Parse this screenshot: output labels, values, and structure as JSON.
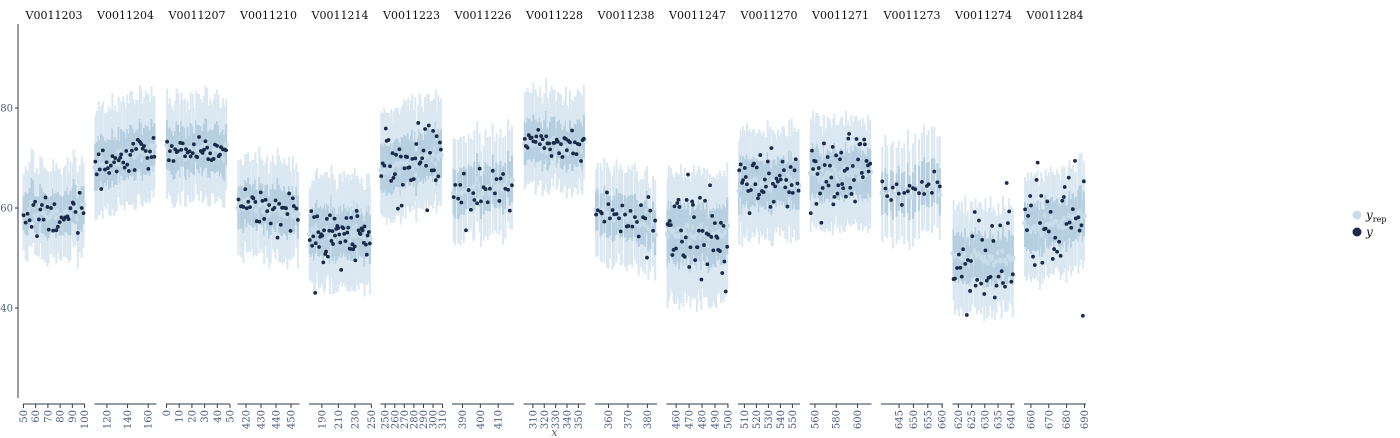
{
  "chart_data": {
    "type": "scatter",
    "title": "",
    "xlabel": "x",
    "ylabel": "",
    "ylim": [
      22,
      96
    ],
    "yticks": [
      40,
      60,
      80
    ],
    "legend": {
      "placement": "right",
      "entries": [
        {
          "name": "y",
          "sub": "rep",
          "color": "#c9dcea"
        },
        {
          "name": "y",
          "sub": "",
          "color": "#1a2b49"
        }
      ]
    },
    "colors": {
      "yrep_outer": "#dbe8f2",
      "yrep_inner": "#b5cfe1",
      "y_point": "#1a2b49",
      "yrep_point": "#c9dcea"
    },
    "panels": [
      {
        "name": "V0011203",
        "xmin": 48,
        "xmax": 102,
        "ticks": [
          50,
          60,
          70,
          80,
          90,
          100
        ],
        "n": 34,
        "center": 59,
        "spread": 2.2,
        "slope": 0.5,
        "band_lo": 7,
        "band_hi": 8
      },
      {
        "name": "V0011204",
        "xmin": 106,
        "xmax": 170,
        "ticks": [
          120,
          140,
          160
        ],
        "n": 40,
        "center": 70,
        "spread": 1.8,
        "slope": 3.5,
        "band_lo": 8,
        "band_hi": 10
      },
      {
        "name": "V0011207",
        "xmin": -2,
        "xmax": 50,
        "ticks": [
          0,
          10,
          20,
          30,
          40,
          50
        ],
        "n": 38,
        "center": 71.5,
        "spread": 1.5,
        "slope": 0,
        "band_lo": 8,
        "band_hi": 9
      },
      {
        "name": "V0011210",
        "xmin": 413,
        "xmax": 457,
        "ticks": [
          420,
          430,
          440,
          450
        ],
        "n": 36,
        "center": 60,
        "spread": 1.6,
        "slope": -2.5,
        "band_lo": 8,
        "band_hi": 8
      },
      {
        "name": "V0011214",
        "xmin": 172,
        "xmax": 252,
        "ticks": [
          190,
          210,
          230,
          250
        ],
        "n": 60,
        "center": 55,
        "spread": 2.8,
        "slope": 0,
        "band_lo": 9,
        "band_hi": 9
      },
      {
        "name": "V0011223",
        "xmin": 243,
        "xmax": 312,
        "ticks": [
          250,
          260,
          270,
          280,
          290,
          300,
          310
        ],
        "n": 45,
        "center": 69,
        "spread": 4.2,
        "slope": 4,
        "band_lo": 8,
        "band_hi": 10
      },
      {
        "name": "V0011226",
        "xmin": 383,
        "xmax": 420,
        "ticks": [
          390,
          400,
          410
        ],
        "n": 28,
        "center": 64,
        "spread": 2.5,
        "slope": 2,
        "band_lo": 8,
        "band_hi": 9
      },
      {
        "name": "V0011228",
        "xmin": 300,
        "xmax": 358,
        "ticks": [
          310,
          320,
          330,
          340,
          350
        ],
        "n": 40,
        "center": 72.5,
        "spread": 1.5,
        "slope": -1,
        "band_lo": 7,
        "band_hi": 9
      },
      {
        "name": "V0011238",
        "xmin": 352,
        "xmax": 386,
        "ticks": [
          360,
          370,
          380
        ],
        "n": 30,
        "center": 58,
        "spread": 2.8,
        "slope": -4,
        "band_lo": 8,
        "band_hi": 8
      },
      {
        "name": "V0011247",
        "xmin": 451,
        "xmax": 502,
        "ticks": [
          460,
          470,
          480,
          490,
          500
        ],
        "n": 50,
        "center": 55,
        "spread": 5,
        "slope": 0,
        "band_lo": 12,
        "band_hi": 10
      },
      {
        "name": "V0011270",
        "xmin": 503,
        "xmax": 558,
        "ticks": [
          510,
          520,
          530,
          540,
          550
        ],
        "n": 45,
        "center": 65,
        "spread": 2.8,
        "slope": 0,
        "band_lo": 9,
        "band_hi": 9
      },
      {
        "name": "V0011271",
        "xmin": 553,
        "xmax": 615,
        "ticks": [
          560,
          580,
          600
        ],
        "n": 50,
        "center": 67,
        "spread": 3.8,
        "slope": 0,
        "band_lo": 9,
        "band_hi": 9
      },
      {
        "name": "V0011273",
        "xmin": 638,
        "xmax": 661,
        "ticks": [
          645,
          650,
          655,
          660
        ],
        "n": 22,
        "center": 63.5,
        "spread": 1.5,
        "slope": 2,
        "band_lo": 8,
        "band_hi": 9
      },
      {
        "name": "V0011274",
        "xmin": 617,
        "xmax": 642,
        "ticks": [
          620,
          625,
          630,
          635,
          640
        ],
        "n": 38,
        "center": 50,
        "spread": 5.5,
        "slope": 0,
        "band_lo": 9,
        "band_hi": 9
      },
      {
        "name": "V0011284",
        "xmin": 655,
        "xmax": 692,
        "ticks": [
          660,
          670,
          680,
          690
        ],
        "n": 38,
        "center": 57,
        "spread": 7,
        "slope": 3,
        "band_lo": 9,
        "band_hi": 9
      }
    ]
  }
}
